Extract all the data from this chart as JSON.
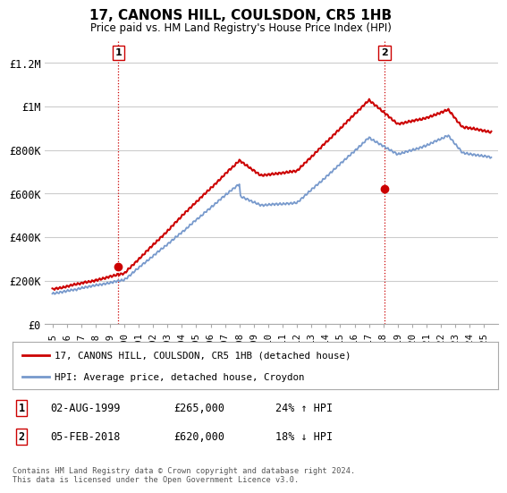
{
  "title": "17, CANONS HILL, COULSDON, CR5 1HB",
  "subtitle": "Price paid vs. HM Land Registry's House Price Index (HPI)",
  "legend_line1": "17, CANONS HILL, COULSDON, CR5 1HB (detached house)",
  "legend_line2": "HPI: Average price, detached house, Croydon",
  "annotation1_date": "02-AUG-1999",
  "annotation1_price": "£265,000",
  "annotation1_hpi": "24% ↑ HPI",
  "annotation2_date": "05-FEB-2018",
  "annotation2_price": "£620,000",
  "annotation2_hpi": "18% ↓ HPI",
  "footer": "Contains HM Land Registry data © Crown copyright and database right 2024.\nThis data is licensed under the Open Government Licence v3.0.",
  "price_color": "#cc0000",
  "hpi_color": "#7799cc",
  "dot_color": "#cc0000",
  "vline_color": "#cc0000",
  "background_color": "#ffffff",
  "grid_color": "#cccccc",
  "ylim": [
    0,
    1300000
  ],
  "yticks": [
    0,
    200000,
    400000,
    600000,
    800000,
    1000000,
    1200000
  ],
  "ytick_labels": [
    "£0",
    "£200K",
    "£400K",
    "£600K",
    "£800K",
    "£1M",
    "£1.2M"
  ],
  "sale1_year": 1999.583,
  "sale1_price": 265000,
  "sale2_year": 2018.083,
  "sale2_price": 620000,
  "xmin": 1994.5,
  "xmax": 2026.0
}
